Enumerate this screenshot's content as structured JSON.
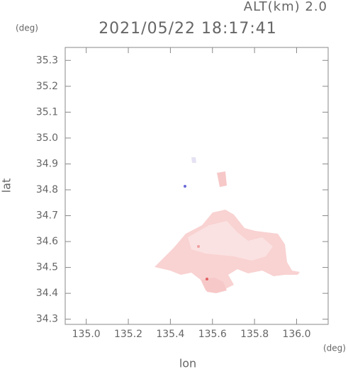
{
  "chart_data": {
    "type": "map",
    "title": "2021/05/22 18:17:41",
    "subtitle": "ALT(km) 2.0",
    "x_label": "lon",
    "x_unit": "(deg)",
    "y_label": "lat",
    "y_unit": "(deg)",
    "xlim": [
      134.9,
      136.15
    ],
    "ylim": [
      34.28,
      35.35
    ],
    "xticks": [
      {
        "value": 135,
        "label": "135.0"
      },
      135.2,
      135.4,
      135.6,
      135.8,
      {
        "value": 136,
        "label": "136.0"
      }
    ],
    "yticks": [
      34.3,
      34.4,
      34.5,
      34.6,
      34.7,
      34.8,
      34.9,
      {
        "value": 35,
        "label": "35.0"
      },
      35.1,
      35.2,
      35.3
    ]
  }
}
